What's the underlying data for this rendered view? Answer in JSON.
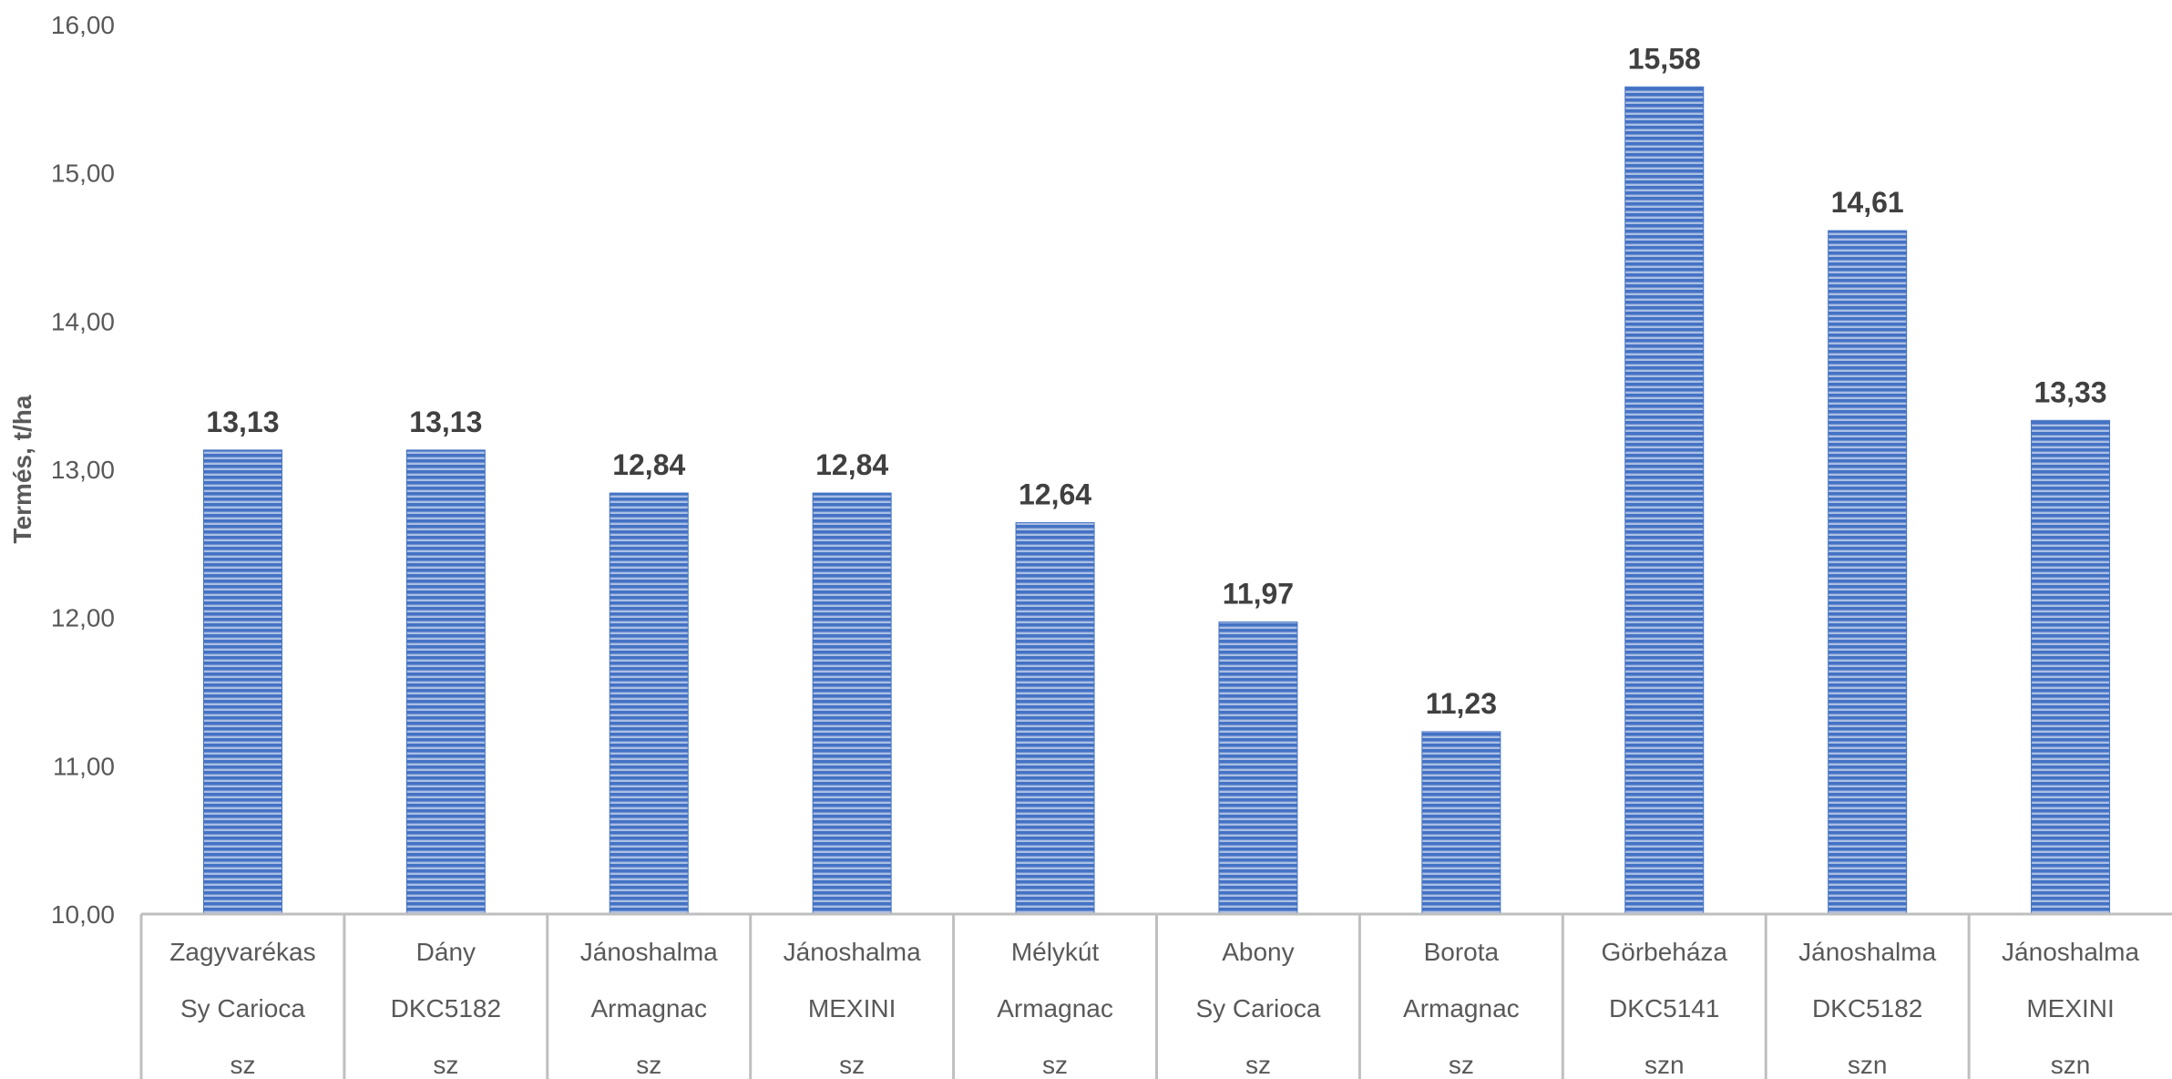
{
  "chart_data": {
    "type": "bar",
    "title": "",
    "xlabel": "",
    "ylabel": "Termés, t/ha",
    "ylim": [
      10,
      16
    ],
    "yticks": [
      "10,00",
      "11,00",
      "12,00",
      "13,00",
      "14,00",
      "15,00",
      "16,00"
    ],
    "grid": false,
    "legend": "none",
    "categories": [
      [
        "Zagyvarékas",
        "Sy Carioca",
        "sz"
      ],
      [
        "Dány",
        "DKC5182",
        "sz"
      ],
      [
        "Jánoshalma",
        "Armagnac",
        "sz"
      ],
      [
        "Jánoshalma",
        "MEXINI",
        "sz"
      ],
      [
        "Mélykút",
        "Armagnac",
        "sz"
      ],
      [
        "Abony",
        "Sy Carioca",
        "sz"
      ],
      [
        "Borota",
        "Armagnac",
        "sz"
      ],
      [
        "Görbeháza",
        "DKC5141",
        "szn"
      ],
      [
        "Jánoshalma",
        "DKC5182",
        "szn"
      ],
      [
        "Jánoshalma",
        "MEXINI",
        "szn"
      ]
    ],
    "values": [
      13.13,
      13.13,
      12.84,
      12.84,
      12.64,
      11.97,
      11.23,
      15.58,
      14.61,
      13.33
    ],
    "value_labels": [
      "13,13",
      "13,13",
      "12,84",
      "12,84",
      "12,64",
      "11,97",
      "11,23",
      "15,58",
      "14,61",
      "13,33"
    ],
    "colors": {
      "bar": "#4472c4",
      "bar_stripe": "#ffffff",
      "axis": "#bfbfbf",
      "tick_text": "#595959",
      "data_label_text": "#404040"
    }
  }
}
